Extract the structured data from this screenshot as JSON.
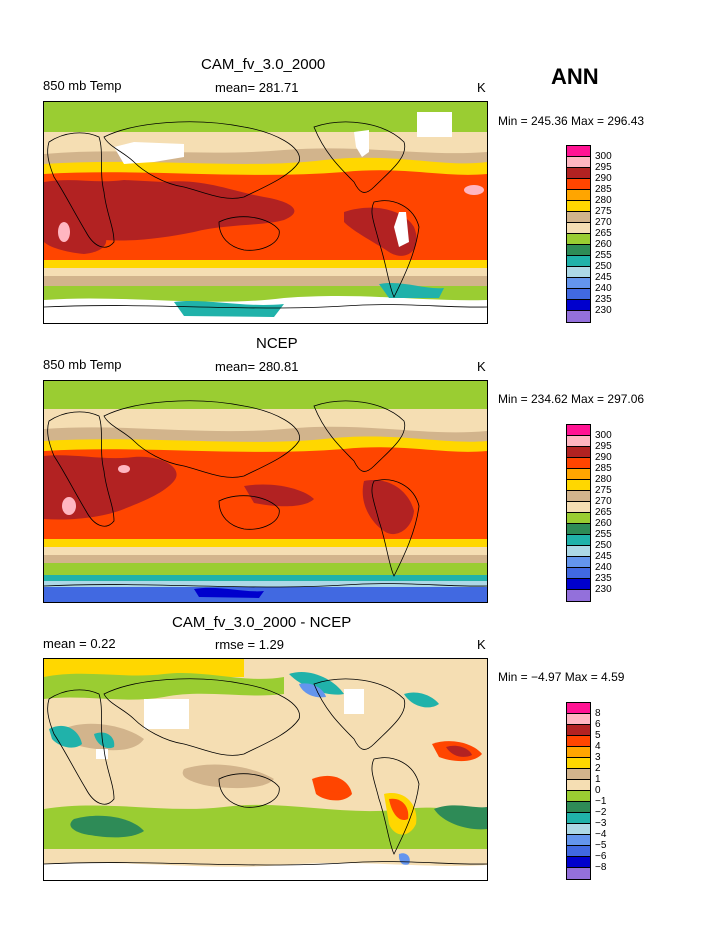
{
  "season": "ANN",
  "panels": [
    {
      "title": "CAM_fv_3.0_2000",
      "left_label": "850 mb Temp",
      "center_label": "mean= 281.71",
      "units": "K",
      "minmax": "Min = 245.36 Max = 296.43",
      "legend": [
        "300",
        "295",
        "290",
        "285",
        "280",
        "275",
        "270",
        "265",
        "260",
        "255",
        "250",
        "245",
        "240",
        "235",
        "230"
      ]
    },
    {
      "title": "NCEP",
      "left_label": "850 mb Temp",
      "center_label": "mean= 280.81",
      "units": "K",
      "minmax": "Min = 234.62 Max = 297.06",
      "legend": [
        "300",
        "295",
        "290",
        "285",
        "280",
        "275",
        "270",
        "265",
        "260",
        "255",
        "250",
        "245",
        "240",
        "235",
        "230"
      ]
    },
    {
      "title": "CAM_fv_3.0_2000 - NCEP",
      "left_label": "mean =    0.22",
      "center_label": "rmse =    1.29",
      "units": "K",
      "minmax": "Min =  −4.97 Max =    4.59",
      "legend": [
        "8",
        "6",
        "5",
        "4",
        "3",
        "2",
        "1",
        "0",
        "−1",
        "−2",
        "−3",
        "−4",
        "−5",
        "−6",
        "−8"
      ]
    }
  ],
  "legend_colors": [
    "#ff1493",
    "#ffb6c1",
    "#b22222",
    "#ff4500",
    "#ffa500",
    "#ffd700",
    "#d2b48c",
    "#f5deb3",
    "#9acd32",
    "#2e8b57",
    "#20b2aa",
    "#add8e6",
    "#6495ed",
    "#4169e1",
    "#0000cd",
    "#9370db"
  ],
  "colors": {
    "brand_red": "#b22222",
    "orange_red": "#ff4500",
    "gold": "#ffd700",
    "tan": "#d2b48c",
    "wheat": "#f5deb3",
    "green": "#9acd32",
    "teal": "#20b2aa",
    "white": "#ffffff"
  }
}
